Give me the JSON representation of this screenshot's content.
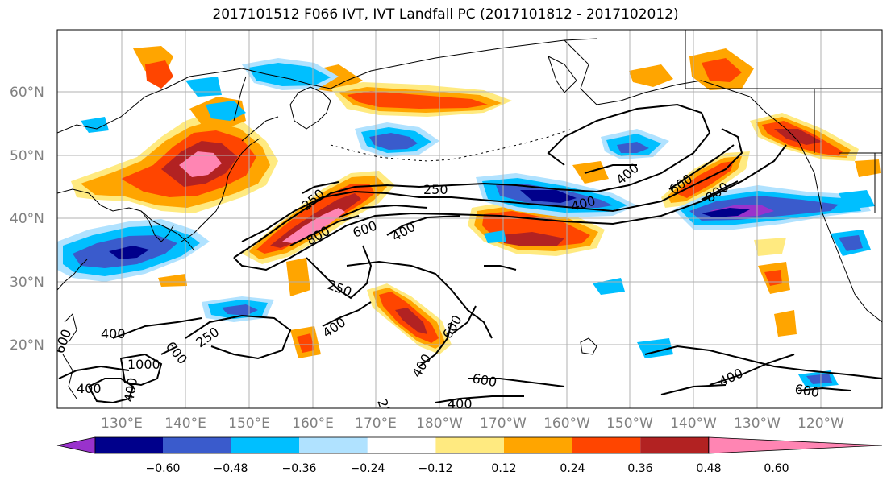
{
  "title": "2017101512 F066 IVT, IVT Landfall PC (2017101812 - 2017102012)",
  "lon_ticks": [
    "130°E",
    "140°E",
    "150°E",
    "160°E",
    "170°E",
    "180°W",
    "170°W",
    "160°W",
    "150°W",
    "140°W",
    "130°W",
    "120°W"
  ],
  "lat_ticks": [
    "60°N",
    "50°N",
    "40°N",
    "30°N",
    "20°N"
  ],
  "colorbar": {
    "colors": [
      "#9932cc",
      "#00008b",
      "#3a5bcc",
      "#00bfff",
      "#b0e2ff",
      "#ffffff",
      "#ffea80",
      "#ffa500",
      "#ff4500",
      "#b22222",
      "#ff85b3"
    ],
    "labels": [
      "−0.60",
      "−0.48",
      "−0.36",
      "−0.24",
      "−0.12",
      "0.12",
      "0.24",
      "0.36",
      "0.48",
      "0.60"
    ]
  },
  "contour_labels": [
    "250",
    "250",
    "400",
    "400",
    "600",
    "800",
    "250",
    "400",
    "600",
    "400",
    "1000",
    "600",
    "400",
    "250",
    "400",
    "800",
    "600",
    "400",
    "600",
    "400",
    "600",
    "250",
    "400",
    "600",
    "400"
  ]
}
